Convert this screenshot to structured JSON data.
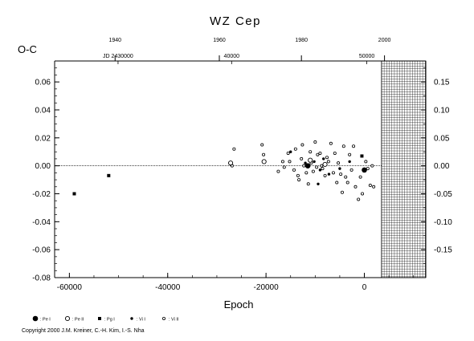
{
  "chart_data": {
    "type": "scatter",
    "title": "WZ Cep",
    "xlabel": "Epoch",
    "ylabel": "O-C",
    "xlim": [
      -63000,
      12500
    ],
    "ylim": [
      -0.08,
      0.075
    ],
    "x_ticks": [
      "-60000",
      "-40000",
      "-20000",
      "0"
    ],
    "x_tick_values": [
      -60000,
      -40000,
      -20000,
      0
    ],
    "y_ticks": [
      "0.06",
      "0.04",
      "0.02",
      "0.00",
      "-0.02",
      "-0.04",
      "-0.06",
      "-0.08"
    ],
    "y_tick_values": [
      0.06,
      0.04,
      0.02,
      0.0,
      -0.02,
      -0.04,
      -0.06,
      -0.08
    ],
    "top_year_ticks": [
      "1940",
      "1960",
      "1980",
      "2000"
    ],
    "top_year_epochs": [
      -50700,
      -29500,
      -12800,
      4100
    ],
    "top_jd_ticks": [
      "JD 2430000",
      "40000",
      "50000"
    ],
    "top_jd_epochs": [
      -50100,
      -27000,
      500
    ],
    "right_ticks": [
      "0.15",
      "0.10",
      "0.05",
      "0.00",
      "-0.05",
      "-0.10",
      "-0.15"
    ],
    "right_tick_values": [
      0.15,
      0.1,
      0.05,
      0.0,
      -0.05,
      -0.1,
      -0.15
    ],
    "right_scale_factor": 2.5,
    "future_region_start": 3500,
    "grid": false,
    "series": [
      {
        "name": ": Pe I",
        "marker": "filled-circle-large",
        "points": [
          [
            -11500,
            0.0
          ],
          [
            0,
            -0.003
          ]
        ]
      },
      {
        "name": ": Pe II",
        "marker": "open-circle-large",
        "points": [
          [
            -27200,
            0.002
          ],
          [
            -20400,
            0.003
          ],
          [
            -11000,
            0.004
          ],
          [
            -8000,
            0.001
          ]
        ]
      },
      {
        "name": ": Pg I",
        "marker": "filled-square",
        "points": [
          [
            -59000,
            -0.02
          ],
          [
            -52000,
            -0.007
          ],
          [
            -500,
            0.007
          ]
        ]
      },
      {
        "name": ": Vi I",
        "marker": "filled-circle-small",
        "points": [
          [
            -15000,
            0.01
          ],
          [
            -12000,
            0.002
          ],
          [
            -10200,
            0.003
          ],
          [
            -9000,
            -0.003
          ],
          [
            -8300,
            0.005
          ],
          [
            -7200,
            -0.006
          ],
          [
            -5000,
            -0.002
          ],
          [
            -3000,
            0.003
          ],
          [
            -9400,
            -0.013
          ]
        ]
      },
      {
        "name": ": Vi II",
        "marker": "open-circle-small",
        "points": [
          [
            -26900,
            0.0
          ],
          [
            -26500,
            0.012
          ],
          [
            -20800,
            0.015
          ],
          [
            -20500,
            0.008
          ],
          [
            -17500,
            -0.004
          ],
          [
            -16600,
            0.003
          ],
          [
            -16300,
            -0.001
          ],
          [
            -15500,
            0.009
          ],
          [
            -15200,
            0.003
          ],
          [
            -14300,
            -0.003
          ],
          [
            -14000,
            0.012
          ],
          [
            -13500,
            -0.007
          ],
          [
            -13300,
            -0.01
          ],
          [
            -12800,
            0.005
          ],
          [
            -12600,
            0.015
          ],
          [
            -12300,
            0.0
          ],
          [
            -11800,
            -0.005
          ],
          [
            -11400,
            -0.013
          ],
          [
            -11000,
            0.01
          ],
          [
            -10800,
            0.002
          ],
          [
            -10400,
            -0.004
          ],
          [
            -10000,
            0.017
          ],
          [
            -9700,
            -0.001
          ],
          [
            -9500,
            0.008
          ],
          [
            -9000,
            0.009
          ],
          [
            -8700,
            0.0
          ],
          [
            -8500,
            -0.002
          ],
          [
            -8000,
            -0.007
          ],
          [
            -7600,
            0.006
          ],
          [
            -7300,
            0.003
          ],
          [
            -6800,
            0.016
          ],
          [
            -6300,
            -0.005
          ],
          [
            -6000,
            0.009
          ],
          [
            -5600,
            -0.012
          ],
          [
            -5300,
            0.002
          ],
          [
            -4800,
            -0.006
          ],
          [
            -4500,
            -0.019
          ],
          [
            -4200,
            0.014
          ],
          [
            -3800,
            -0.008
          ],
          [
            -3400,
            -0.012
          ],
          [
            -3000,
            0.008
          ],
          [
            -2600,
            -0.003
          ],
          [
            -2200,
            0.014
          ],
          [
            -1800,
            -0.015
          ],
          [
            -1200,
            -0.024
          ],
          [
            -800,
            -0.008
          ],
          [
            -400,
            -0.02
          ],
          [
            300,
            0.003
          ],
          [
            700,
            -0.002
          ],
          [
            1200,
            -0.014
          ],
          [
            1600,
            0.0
          ],
          [
            1900,
            -0.015
          ]
        ]
      }
    ]
  },
  "legend": [
    {
      "label": ": Pe I",
      "marker": "filled-circle-large"
    },
    {
      "label": ": Pe II",
      "marker": "open-circle-large"
    },
    {
      "label": ": Pg I",
      "marker": "filled-square"
    },
    {
      "label": ": Vi I",
      "marker": "filled-circle-small"
    },
    {
      "label": ": Vi II",
      "marker": "open-circle-small"
    }
  ],
  "copyright": "Copyright 2000 J.M. Kreiner, C.-H. Kim, I.-S. Nha"
}
